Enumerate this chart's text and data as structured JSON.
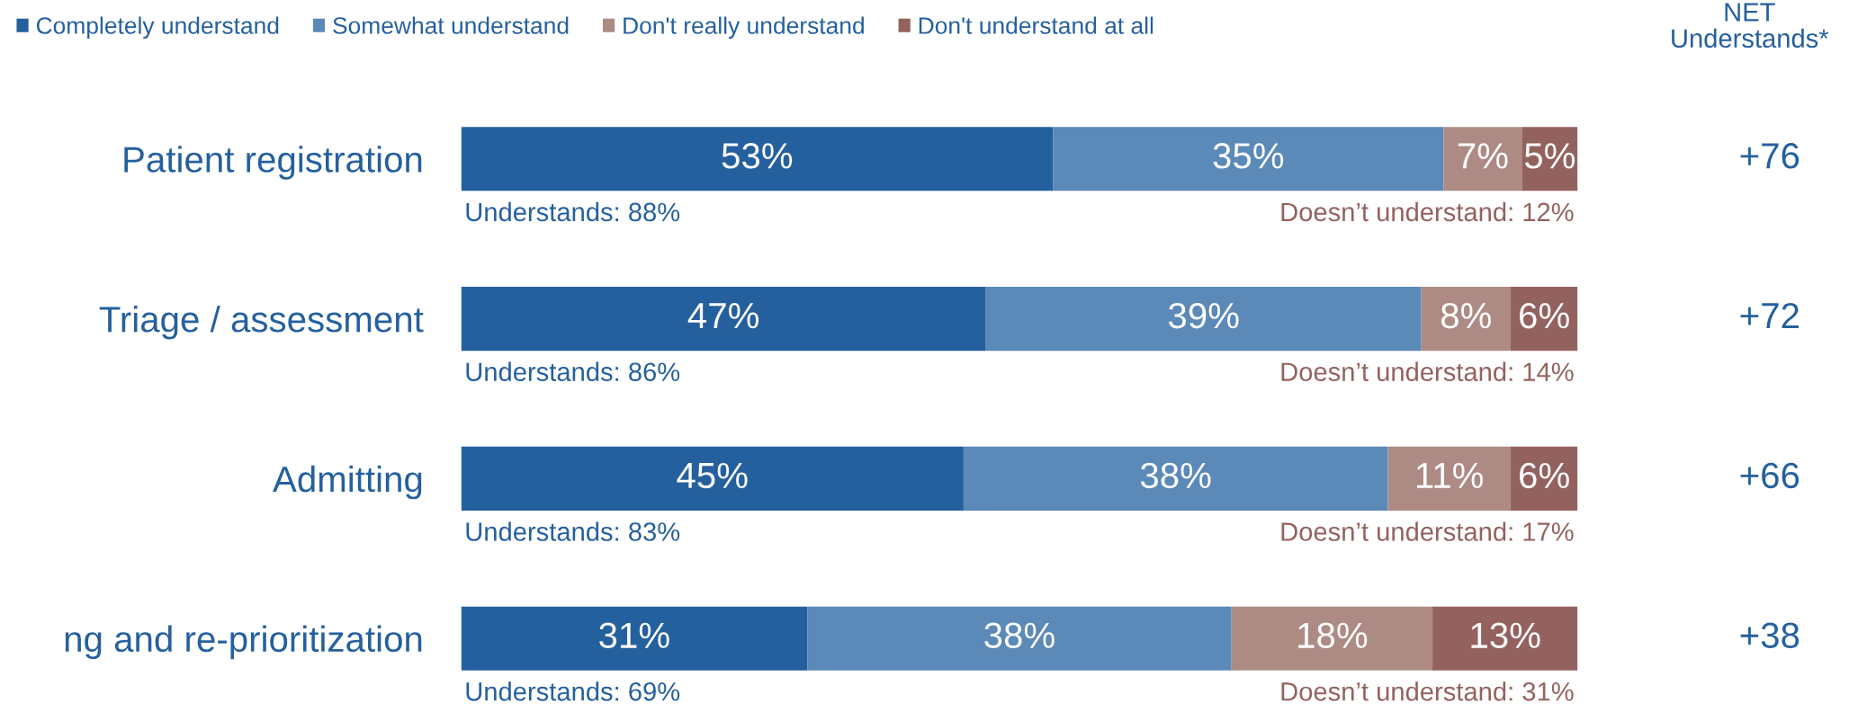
{
  "chart_data": {
    "type": "bar",
    "orientation": "horizontal",
    "stacked": true,
    "legend": "top left",
    "categories": [
      "Patient registration",
      "Triage / assessment",
      "Admitting",
      "ng and re-prioritization"
    ],
    "series": [
      {
        "name": "Completely understand",
        "color": "#25609e",
        "values": [
          53,
          47,
          45,
          31
        ],
        "value_labels": [
          "53%",
          "47%",
          "45%",
          "31%"
        ]
      },
      {
        "name": "Somewhat understand",
        "color": "#5b89b8",
        "values": [
          35,
          39,
          38,
          38
        ],
        "value_labels": [
          "35%",
          "39%",
          "38%",
          "38%"
        ]
      },
      {
        "name": "Don't really understand",
        "color": "#ad8b84",
        "values": [
          7,
          8,
          11,
          18
        ],
        "value_labels": [
          "7%",
          "8%",
          "11%",
          "18%"
        ]
      },
      {
        "name": "Don't understand at all",
        "color": "#94625e",
        "values": [
          5,
          6,
          6,
          13
        ],
        "value_labels": [
          "5%",
          "6%",
          "6%",
          "13%"
        ]
      }
    ],
    "annotations": [
      "Understands: 88%",
      "Doesn’t understand: 12%",
      "Understands: 86%",
      "Doesn’t understand: 14%",
      "Understands: 83%",
      "Doesn’t understand: 17%",
      "Understands: 69%",
      "Doesn’t understand: 31%",
      "NET\nUnderstands*",
      "+76",
      "+72",
      "+66",
      "+38"
    ]
  }
}
